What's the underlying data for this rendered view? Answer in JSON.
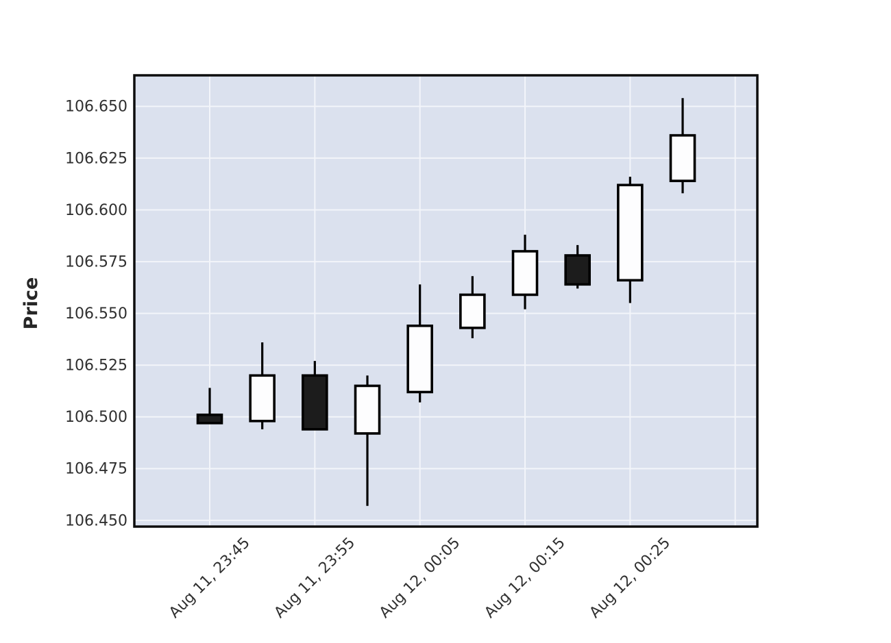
{
  "chart_data": {
    "type": "candlestick",
    "title": "",
    "xlabel": "",
    "ylabel": "Price",
    "grid": true,
    "legend_position": "none",
    "ylim": [
      106.447,
      106.665
    ],
    "xlim_candle_index": [
      -1.43,
      10.43
    ],
    "y_ticks": [
      {
        "value": 106.45,
        "label": "106.450"
      },
      {
        "value": 106.475,
        "label": "106.475"
      },
      {
        "value": 106.5,
        "label": "106.500"
      },
      {
        "value": 106.525,
        "label": "106.525"
      },
      {
        "value": 106.55,
        "label": "106.550"
      },
      {
        "value": 106.575,
        "label": "106.575"
      },
      {
        "value": 106.6,
        "label": "106.600"
      },
      {
        "value": 106.625,
        "label": "106.625"
      },
      {
        "value": 106.65,
        "label": "106.650"
      }
    ],
    "x_ticks": [
      {
        "index": 0,
        "label": "Aug 11, 23:45"
      },
      {
        "index": 2,
        "label": "Aug 11, 23:55"
      },
      {
        "index": 4,
        "label": "Aug 12, 00:05"
      },
      {
        "index": 6,
        "label": "Aug 12, 00:15"
      },
      {
        "index": 8,
        "label": "Aug 12, 00:25"
      },
      {
        "index": 10,
        "label": ""
      }
    ],
    "candles": [
      {
        "x": 0,
        "open": 106.501,
        "high": 106.514,
        "low": 106.497,
        "close": 106.497,
        "direction": "down"
      },
      {
        "x": 1,
        "open": 106.498,
        "high": 106.536,
        "low": 106.494,
        "close": 106.52,
        "direction": "up"
      },
      {
        "x": 2,
        "open": 106.52,
        "high": 106.527,
        "low": 106.494,
        "close": 106.494,
        "direction": "down"
      },
      {
        "x": 3,
        "open": 106.492,
        "high": 106.52,
        "low": 106.457,
        "close": 106.515,
        "direction": "up"
      },
      {
        "x": 4,
        "open": 106.512,
        "high": 106.564,
        "low": 106.507,
        "close": 106.544,
        "direction": "up"
      },
      {
        "x": 5,
        "open": 106.543,
        "high": 106.568,
        "low": 106.538,
        "close": 106.559,
        "direction": "up"
      },
      {
        "x": 6,
        "open": 106.559,
        "high": 106.588,
        "low": 106.552,
        "close": 106.58,
        "direction": "up"
      },
      {
        "x": 7,
        "open": 106.578,
        "high": 106.583,
        "low": 106.562,
        "close": 106.564,
        "direction": "down"
      },
      {
        "x": 8,
        "open": 106.566,
        "high": 106.616,
        "low": 106.555,
        "close": 106.612,
        "direction": "up"
      },
      {
        "x": 9,
        "open": 106.614,
        "high": 106.654,
        "low": 106.608,
        "close": 106.636,
        "direction": "up"
      }
    ],
    "colors": {
      "up_fill": "#fdfdfe",
      "down_fill": "#1c1c1c",
      "candle_outline": "#000000",
      "plot_bg": "#dbe1ee",
      "grid": "#f3f5fa",
      "frame": "#0d0d0d",
      "tick_text": "#303030",
      "axis_title_text": "#262626",
      "figure_bg": "#ffffff"
    }
  }
}
